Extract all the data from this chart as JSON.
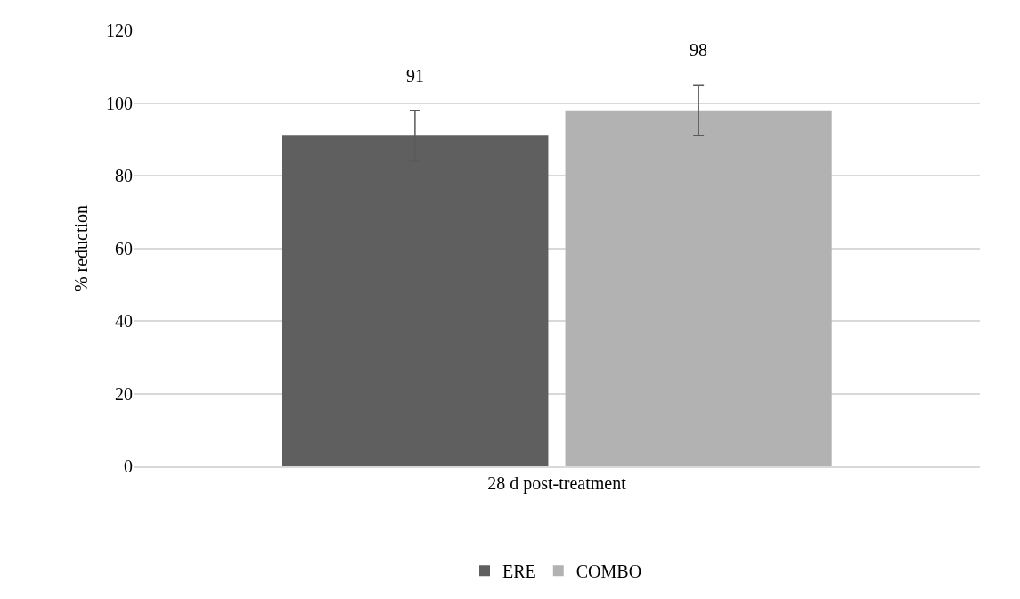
{
  "chart_data": {
    "type": "bar",
    "ylabel": "% reduction",
    "categories": [
      "28 d post-treatment"
    ],
    "series": [
      {
        "name": "ERE",
        "color": "#5f5f5f",
        "values": [
          91
        ],
        "errors": [
          7
        ]
      },
      {
        "name": "COMBO",
        "color": "#b2b2b2",
        "values": [
          98
        ],
        "errors": [
          7
        ]
      }
    ],
    "ylim": [
      0,
      120
    ],
    "yticks": [
      0,
      20,
      40,
      60,
      80,
      100,
      120
    ],
    "grid": "y",
    "legend": "bottom",
    "data_labels": true
  }
}
